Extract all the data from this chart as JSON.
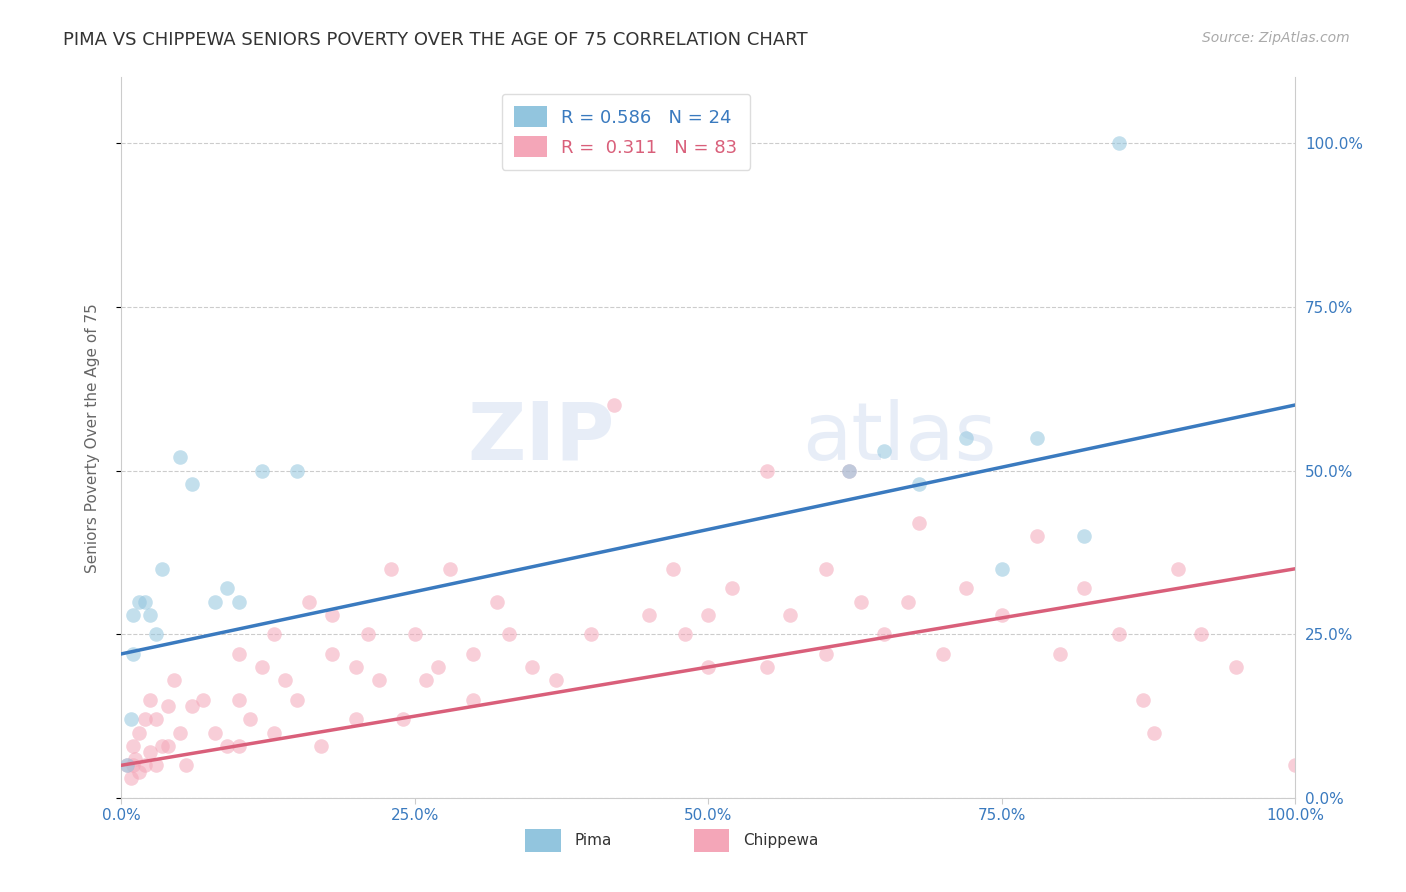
{
  "title": "PIMA VS CHIPPEWA SENIORS POVERTY OVER THE AGE OF 75 CORRELATION CHART",
  "source": "Source: ZipAtlas.com",
  "ylabel": "Seniors Poverty Over the Age of 75",
  "pima_color": "#92c5de",
  "chippewa_color": "#f4a6b8",
  "pima_line_color": "#3a7abf",
  "chippewa_line_color": "#d95f7a",
  "pima_R": 0.586,
  "pima_N": 24,
  "chippewa_R": 0.311,
  "chippewa_N": 83,
  "watermark_zip": "ZIP",
  "watermark_atlas": "atlas",
  "pima_x": [
    0.005,
    0.008,
    0.01,
    0.01,
    0.015,
    0.02,
    0.025,
    0.03,
    0.035,
    0.05,
    0.06,
    0.08,
    0.09,
    0.1,
    0.12,
    0.15,
    0.62,
    0.65,
    0.68,
    0.72,
    0.75,
    0.78,
    0.82,
    0.85
  ],
  "pima_y": [
    0.05,
    0.12,
    0.22,
    0.28,
    0.3,
    0.3,
    0.28,
    0.25,
    0.35,
    0.52,
    0.48,
    0.3,
    0.32,
    0.3,
    0.5,
    0.5,
    0.5,
    0.53,
    0.48,
    0.55,
    0.35,
    0.55,
    0.4,
    1.0
  ],
  "chippewa_x": [
    0.005,
    0.008,
    0.01,
    0.01,
    0.012,
    0.015,
    0.015,
    0.02,
    0.02,
    0.025,
    0.025,
    0.03,
    0.03,
    0.035,
    0.04,
    0.04,
    0.045,
    0.05,
    0.055,
    0.06,
    0.07,
    0.08,
    0.09,
    0.1,
    0.1,
    0.1,
    0.11,
    0.12,
    0.13,
    0.13,
    0.14,
    0.15,
    0.16,
    0.17,
    0.18,
    0.18,
    0.2,
    0.2,
    0.21,
    0.22,
    0.23,
    0.24,
    0.25,
    0.26,
    0.27,
    0.28,
    0.3,
    0.3,
    0.32,
    0.33,
    0.35,
    0.37,
    0.4,
    0.42,
    0.45,
    0.47,
    0.48,
    0.5,
    0.5,
    0.52,
    0.55,
    0.55,
    0.57,
    0.6,
    0.6,
    0.62,
    0.63,
    0.65,
    0.67,
    0.68,
    0.7,
    0.72,
    0.75,
    0.78,
    0.8,
    0.82,
    0.85,
    0.87,
    0.88,
    0.9,
    0.92,
    0.95,
    1.0
  ],
  "chippewa_y": [
    0.05,
    0.03,
    0.08,
    0.05,
    0.06,
    0.04,
    0.1,
    0.05,
    0.12,
    0.07,
    0.15,
    0.05,
    0.12,
    0.08,
    0.08,
    0.14,
    0.18,
    0.1,
    0.05,
    0.14,
    0.15,
    0.1,
    0.08,
    0.15,
    0.08,
    0.22,
    0.12,
    0.2,
    0.25,
    0.1,
    0.18,
    0.15,
    0.3,
    0.08,
    0.22,
    0.28,
    0.2,
    0.12,
    0.25,
    0.18,
    0.35,
    0.12,
    0.25,
    0.18,
    0.2,
    0.35,
    0.22,
    0.15,
    0.3,
    0.25,
    0.2,
    0.18,
    0.25,
    0.6,
    0.28,
    0.35,
    0.25,
    0.28,
    0.2,
    0.32,
    0.2,
    0.5,
    0.28,
    0.35,
    0.22,
    0.5,
    0.3,
    0.25,
    0.3,
    0.42,
    0.22,
    0.32,
    0.28,
    0.4,
    0.22,
    0.32,
    0.25,
    0.15,
    0.1,
    0.35,
    0.25,
    0.2,
    0.05
  ],
  "pima_line_x0": 0.0,
  "pima_line_y0": 0.22,
  "pima_line_x1": 1.0,
  "pima_line_y1": 0.6,
  "chippewa_line_x0": 0.0,
  "chippewa_line_y0": 0.05,
  "chippewa_line_x1": 1.0,
  "chippewa_line_y1": 0.35,
  "xlim": [
    0.0,
    1.0
  ],
  "ylim": [
    0.0,
    1.1
  ],
  "xticks": [
    0.0,
    0.25,
    0.5,
    0.75,
    1.0
  ],
  "xtick_labels": [
    "0.0%",
    "25.0%",
    "50.0%",
    "75.0%",
    "100.0%"
  ],
  "yticks": [
    0.0,
    0.25,
    0.5,
    0.75,
    1.0
  ],
  "ytick_labels": [
    "0.0%",
    "25.0%",
    "50.0%",
    "75.0%",
    "100.0%"
  ],
  "grid_color": "#cccccc",
  "background_color": "#ffffff",
  "marker_size": 110,
  "marker_alpha": 0.55,
  "tick_color": "#3a7abf",
  "title_fontsize": 13,
  "axis_label_fontsize": 11,
  "tick_fontsize": 11
}
